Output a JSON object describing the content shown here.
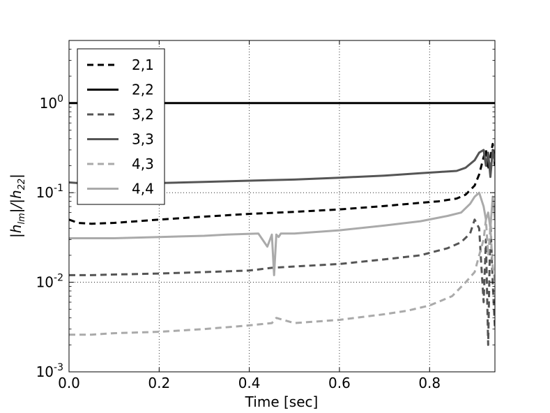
{
  "chart_data": {
    "type": "line",
    "title": "",
    "xlabel": "Time [sec]",
    "ylabel": "|h_lm|/|h_22|",
    "ylabel_parts": [
      "|h",
      "lm",
      "|/|h",
      "22",
      "|"
    ],
    "xlim": [
      0.0,
      0.945
    ],
    "ylim": [
      0.001,
      5
    ],
    "yscale": "log",
    "grid": true,
    "legend_position": "upper-left",
    "xticks": [
      {
        "value": 0.0,
        "label": "0.0"
      },
      {
        "value": 0.2,
        "label": "0.2"
      },
      {
        "value": 0.4,
        "label": "0.4"
      },
      {
        "value": 0.6,
        "label": "0.6"
      },
      {
        "value": 0.8,
        "label": "0.8"
      }
    ],
    "yticks": [
      {
        "value": 0.001,
        "base": "10",
        "exp": "-3"
      },
      {
        "value": 0.01,
        "base": "10",
        "exp": "-2"
      },
      {
        "value": 0.1,
        "base": "10",
        "exp": "-1"
      },
      {
        "value": 1,
        "base": "10",
        "exp": "0"
      }
    ],
    "series": [
      {
        "name": "2,1",
        "color": "#000000",
        "style": "dashed",
        "x": [
          0.0,
          0.02,
          0.05,
          0.1,
          0.2,
          0.3,
          0.4,
          0.5,
          0.6,
          0.7,
          0.78,
          0.82,
          0.86,
          0.88,
          0.9,
          0.91,
          0.92,
          0.925,
          0.93,
          0.935,
          0.94,
          0.945
        ],
        "y": [
          0.05,
          0.046,
          0.045,
          0.046,
          0.05,
          0.054,
          0.058,
          0.061,
          0.065,
          0.071,
          0.077,
          0.08,
          0.086,
          0.095,
          0.12,
          0.16,
          0.25,
          0.3,
          0.18,
          0.25,
          0.35,
          0.2
        ]
      },
      {
        "name": "2,2",
        "color": "#000000",
        "style": "solid",
        "x": [
          0.0,
          0.945
        ],
        "y": [
          1.0,
          1.0
        ]
      },
      {
        "name": "3,2",
        "color": "#555555",
        "style": "dashed",
        "x": [
          0.0,
          0.05,
          0.1,
          0.2,
          0.3,
          0.4,
          0.45,
          0.5,
          0.6,
          0.7,
          0.78,
          0.84,
          0.87,
          0.89,
          0.9,
          0.91,
          0.915,
          0.92,
          0.925,
          0.93,
          0.935,
          0.94,
          0.945
        ],
        "y": [
          0.012,
          0.012,
          0.0122,
          0.0125,
          0.013,
          0.0135,
          0.0145,
          0.015,
          0.016,
          0.018,
          0.02,
          0.024,
          0.028,
          0.035,
          0.05,
          0.04,
          0.015,
          0.006,
          0.03,
          0.002,
          0.05,
          0.01,
          0.003
        ]
      },
      {
        "name": "3,3",
        "color": "#555555",
        "style": "solid",
        "x": [
          0.0,
          0.02,
          0.05,
          0.1,
          0.2,
          0.3,
          0.4,
          0.5,
          0.6,
          0.7,
          0.78,
          0.82,
          0.86,
          0.88,
          0.9,
          0.91,
          0.92,
          0.925,
          0.93,
          0.935,
          0.94,
          0.945
        ],
        "y": [
          0.13,
          0.128,
          0.127,
          0.127,
          0.128,
          0.132,
          0.136,
          0.14,
          0.147,
          0.155,
          0.165,
          0.17,
          0.175,
          0.19,
          0.23,
          0.28,
          0.3,
          0.2,
          0.28,
          0.15,
          0.3,
          0.22
        ]
      },
      {
        "name": "4,3",
        "color": "#aaaaaa",
        "style": "dashed",
        "x": [
          0.0,
          0.05,
          0.1,
          0.2,
          0.3,
          0.4,
          0.45,
          0.46,
          0.5,
          0.6,
          0.7,
          0.75,
          0.8,
          0.85,
          0.88,
          0.9,
          0.91,
          0.92,
          0.925,
          0.93,
          0.935,
          0.94,
          0.945
        ],
        "y": [
          0.0026,
          0.0026,
          0.0027,
          0.0028,
          0.003,
          0.0033,
          0.0035,
          0.004,
          0.0035,
          0.0038,
          0.0044,
          0.0048,
          0.0055,
          0.007,
          0.01,
          0.013,
          0.02,
          0.03,
          0.05,
          0.02,
          0.04,
          0.015,
          0.01
        ]
      },
      {
        "name": "4,4",
        "color": "#aaaaaa",
        "style": "solid",
        "x": [
          0.0,
          0.05,
          0.1,
          0.2,
          0.3,
          0.35,
          0.42,
          0.44,
          0.45,
          0.455,
          0.46,
          0.465,
          0.47,
          0.5,
          0.6,
          0.7,
          0.78,
          0.84,
          0.87,
          0.89,
          0.9,
          0.91,
          0.92,
          0.925,
          0.93,
          0.935,
          0.94,
          0.945
        ],
        "y": [
          0.031,
          0.031,
          0.031,
          0.032,
          0.033,
          0.034,
          0.035,
          0.025,
          0.034,
          0.012,
          0.034,
          0.032,
          0.035,
          0.035,
          0.038,
          0.043,
          0.048,
          0.055,
          0.06,
          0.075,
          0.09,
          0.1,
          0.07,
          0.05,
          0.06,
          0.04,
          0.09,
          0.05
        ]
      }
    ]
  }
}
